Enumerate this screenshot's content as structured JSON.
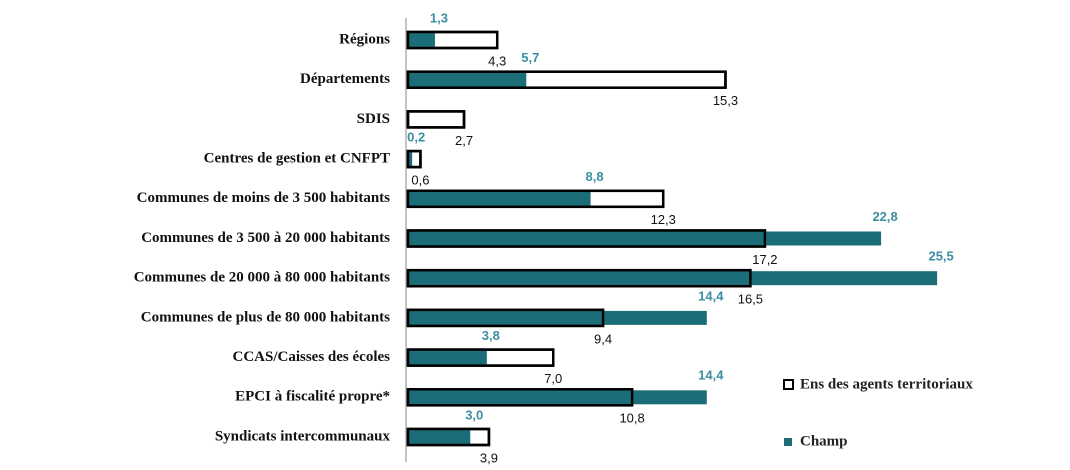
{
  "chart_data": {
    "type": "bar",
    "orientation": "horizontal",
    "categories": [
      "Régions",
      "Départements",
      "SDIS",
      "Centres de gestion et CNFPT",
      "Communes de moins de 3 500 habitants",
      "Communes de 3 500 à 20 000 habitants",
      "Communes de 20 000 à 80 000 habitants",
      "Communes de plus de 80 000 habitants",
      "CCAS/Caisses des écoles",
      "EPCI à fiscalité propre*",
      "Syndicats intercommunaux"
    ],
    "series": [
      {
        "name": "Ens des agents territoriaux",
        "color": "#ffffff",
        "edge": "#000000",
        "values": [
          4.3,
          15.3,
          2.7,
          0.6,
          12.3,
          17.2,
          16.5,
          9.4,
          7.0,
          10.8,
          3.9
        ],
        "value_labels": [
          "4,3",
          "15,3",
          "2,7",
          "0,6",
          "12,3",
          "17,2",
          "16,5",
          "9,4",
          "7,0",
          "10,8",
          "3,9"
        ]
      },
      {
        "name": "Champ",
        "color": "#1b6e78",
        "values": [
          1.3,
          5.7,
          null,
          0.2,
          8.8,
          22.8,
          25.5,
          14.4,
          3.8,
          14.4,
          3.0
        ],
        "value_labels": [
          "1,3",
          "5,7",
          null,
          "0,2",
          "8,8",
          "22,8",
          "25,5",
          "14,4",
          "3,8",
          "14,4",
          "3,0"
        ]
      }
    ]
  }
}
